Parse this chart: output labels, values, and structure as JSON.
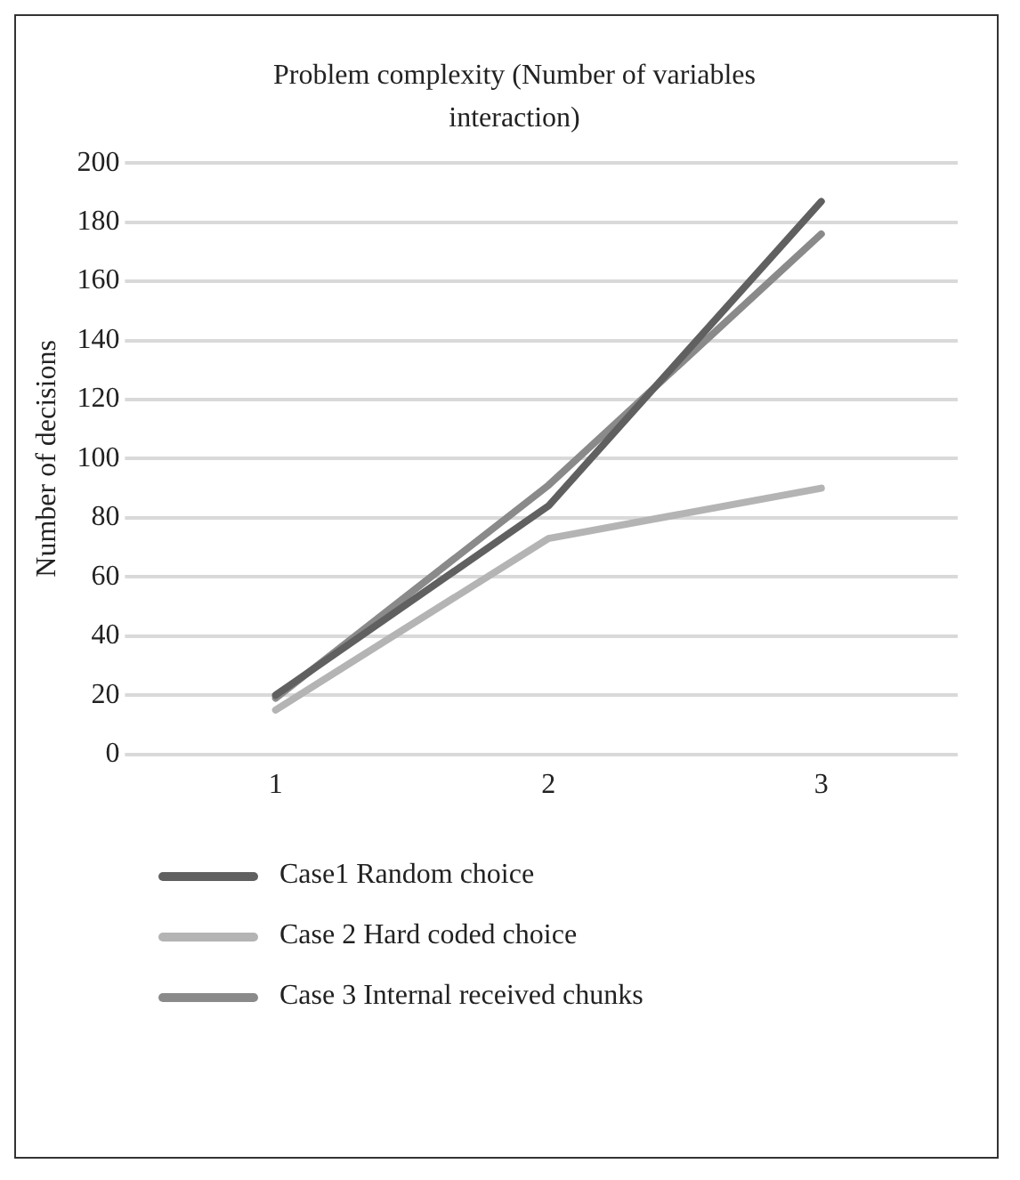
{
  "chart_data": {
    "type": "line",
    "title": "Problem complexity (Number of variables interaction)",
    "ylabel": "Number of decisions",
    "categories": [
      "1",
      "2",
      "3"
    ],
    "series": [
      {
        "name": "Case1 Random choice",
        "color": "#606060",
        "values": [
          20,
          84,
          187
        ]
      },
      {
        "name": "Case 2 Hard coded choice",
        "color": "#b4b4b4",
        "values": [
          15,
          73,
          90
        ]
      },
      {
        "name": "Case 3 Internal received chunks",
        "color": "#8a8a8a",
        "values": [
          19,
          91,
          176
        ]
      }
    ],
    "ylim": [
      0,
      200
    ],
    "yticks": [
      0,
      20,
      40,
      60,
      80,
      100,
      120,
      140,
      160,
      180,
      200
    ],
    "grid": "y",
    "legend": "bottom",
    "marker": "none",
    "line_style": "solid"
  }
}
